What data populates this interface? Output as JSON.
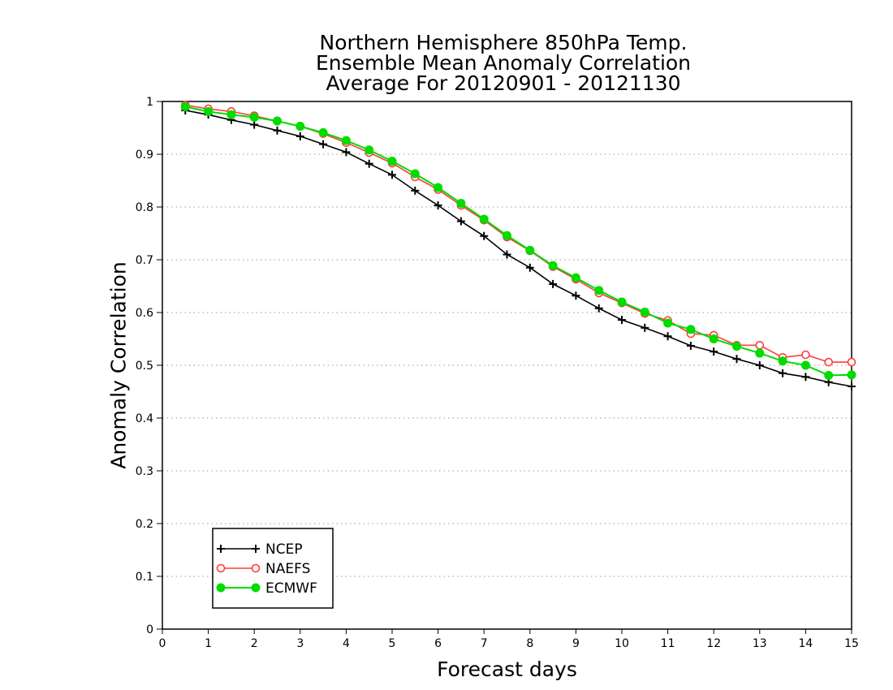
{
  "chart_data": {
    "type": "line",
    "title": [
      "Northern Hemisphere 850hPa Temp.",
      "Ensemble Mean Anomaly Correlation",
      "Average For 20120901 - 20121130"
    ],
    "xlabel": "Forecast days",
    "ylabel": "Anomaly Correlation",
    "xlim": [
      0,
      15
    ],
    "ylim": [
      0,
      1
    ],
    "x_ticks": [
      "0",
      "1",
      "2",
      "3",
      "4",
      "5",
      "6",
      "7",
      "8",
      "9",
      "10",
      "11",
      "12",
      "13",
      "14",
      "15"
    ],
    "y_ticks": [
      "0",
      "0.1",
      "0.2",
      "0.3",
      "0.4",
      "0.5",
      "0.6",
      "0.7",
      "0.8",
      "0.9",
      "1"
    ],
    "grid": "horizontal dotted",
    "legend_position": "bottom-left",
    "x": [
      0.5,
      1,
      1.5,
      2,
      2.5,
      3,
      3.5,
      4,
      4.5,
      5,
      5.5,
      6,
      6.5,
      7,
      7.5,
      8,
      8.5,
      9,
      9.5,
      10,
      10.5,
      11,
      11.5,
      12,
      12.5,
      13,
      13.5,
      14,
      14.5,
      15
    ],
    "series": [
      {
        "name": "NCEP",
        "color": "#000000",
        "marker": "plus",
        "values": [
          0.983,
          0.975,
          0.965,
          0.956,
          0.945,
          0.934,
          0.919,
          0.904,
          0.882,
          0.861,
          0.831,
          0.803,
          0.773,
          0.745,
          0.71,
          0.685,
          0.654,
          0.632,
          0.608,
          0.586,
          0.571,
          0.555,
          0.537,
          0.526,
          0.512,
          0.5,
          0.485,
          0.478,
          0.468,
          0.46
        ]
      },
      {
        "name": "NAEFS",
        "color": "#ff3c3c",
        "marker": "open-circle",
        "values": [
          0.993,
          0.986,
          0.981,
          0.973,
          0.963,
          0.953,
          0.939,
          0.922,
          0.903,
          0.883,
          0.857,
          0.833,
          0.803,
          0.775,
          0.743,
          0.717,
          0.687,
          0.663,
          0.637,
          0.618,
          0.598,
          0.585,
          0.56,
          0.557,
          0.538,
          0.538,
          0.515,
          0.52,
          0.506,
          0.506
        ]
      },
      {
        "name": "ECMWF",
        "color": "#00dc00",
        "marker": "filled-circle",
        "values": [
          0.99,
          0.981,
          0.975,
          0.97,
          0.963,
          0.953,
          0.941,
          0.926,
          0.908,
          0.887,
          0.863,
          0.837,
          0.807,
          0.777,
          0.746,
          0.718,
          0.689,
          0.666,
          0.642,
          0.62,
          0.601,
          0.58,
          0.568,
          0.55,
          0.536,
          0.523,
          0.508,
          0.5,
          0.481,
          0.482
        ]
      }
    ]
  }
}
